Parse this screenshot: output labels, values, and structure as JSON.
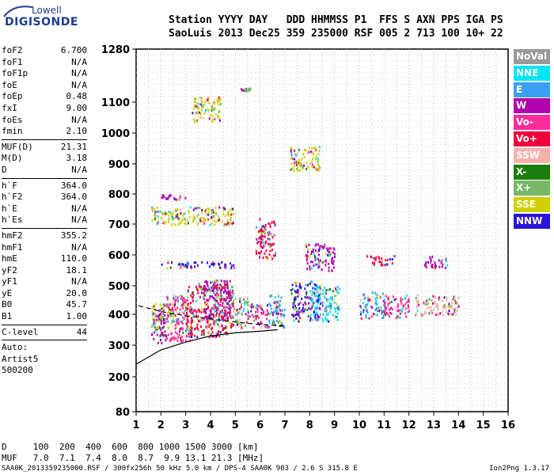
{
  "logo": {
    "top": "Lowell",
    "bottom": "DIGISONDE"
  },
  "header": {
    "line1": "Station YYYY DAY   DDD HHMMSS P1  FFS S AXN PPS IGA PS",
    "line2": "SaoLuis 2013 Dec25 359 235000 RSF 005 2 713 100 10+ 22"
  },
  "params_group1": [
    {
      "name": "foF2",
      "value": "6.700"
    },
    {
      "name": "foF1",
      "value": "N/A"
    },
    {
      "name": "foF1p",
      "value": "N/A"
    },
    {
      "name": "foE",
      "value": "N/A"
    },
    {
      "name": "foEp",
      "value": "0.48"
    },
    {
      "name": "fxI",
      "value": "9.00"
    },
    {
      "name": "foEs",
      "value": "N/A"
    },
    {
      "name": "fmin",
      "value": "2.10"
    }
  ],
  "params_group2": [
    {
      "name": "MUF(D)",
      "value": "21.31"
    },
    {
      "name": "M(D)",
      "value": "3.18"
    },
    {
      "name": "D",
      "value": "N/A"
    }
  ],
  "params_group3": [
    {
      "name": "h`F",
      "value": "364.0"
    },
    {
      "name": "h`F2",
      "value": "364.0"
    },
    {
      "name": "h`E",
      "value": "N/A"
    },
    {
      "name": "h`Es",
      "value": "N/A"
    }
  ],
  "params_group4": [
    {
      "name": "hmF2",
      "value": "355.2"
    },
    {
      "name": "hmF1",
      "value": "N/A"
    },
    {
      "name": "hmE",
      "value": "110.0"
    },
    {
      "name": "yF2",
      "value": "18.1"
    },
    {
      "name": "yF1",
      "value": "N/A"
    },
    {
      "name": "yE",
      "value": "20.0"
    },
    {
      "name": "B0",
      "value": "45.7"
    },
    {
      "name": "B1",
      "value": "1.00"
    }
  ],
  "c_level": {
    "name": "C-level",
    "value": "44"
  },
  "auto": [
    "Auto:",
    "Artist5",
    "500200"
  ],
  "legend": [
    {
      "label": "NoVal",
      "color": "#9a9a9a"
    },
    {
      "label": "NNE",
      "color": "#00e5f5"
    },
    {
      "label": "E",
      "color": "#3aa0ef"
    },
    {
      "label": "W",
      "color": "#b000b0"
    },
    {
      "label": "Vo-",
      "color": "#ff2c9c"
    },
    {
      "label": "Vo+",
      "color": "#f0003a"
    },
    {
      "label": "SSW",
      "color": "#f4b2aa"
    },
    {
      "label": "X-",
      "color": "#1b7d0b"
    },
    {
      "label": "X+",
      "color": "#78b868"
    },
    {
      "label": "SSE",
      "color": "#d0d000"
    },
    {
      "label": "NNW",
      "color": "#2a14d8"
    }
  ],
  "bottom_rows": {
    "d_line": "D     100  200  400  600  800 1000 1500 3000 [km]",
    "muf_line": "MUF   7.0  7.1  7.4  8.0  8.7  9.9 13.1 21.3 [MHz]"
  },
  "footer": {
    "left": "SAA0K_2013359235000.RSF / 300fx256h 50 kHz 5.0 km / DPS-4 SAA0K 903 / 2.6 S 315.8 E",
    "right": "Ion2Png 1.3.17"
  },
  "chart_data": {
    "type": "scatter",
    "x_ticks": [
      1,
      2,
      3,
      4,
      5,
      6,
      7,
      8,
      9,
      10,
      11,
      12,
      13,
      14,
      15,
      16
    ],
    "y_ticks": [
      80,
      200,
      300,
      400,
      500,
      600,
      700,
      800,
      900,
      1000,
      1100,
      1280
    ],
    "xlim": [
      1,
      16
    ],
    "ylim": [
      80,
      1280
    ],
    "x_scale": "linear",
    "y_scale": "nonlinear",
    "grid": true,
    "clusters": [
      {
        "x": [
          1.6,
          2.2
        ],
        "y": [
          310,
          420
        ],
        "series": "W"
      },
      {
        "x": [
          1.6,
          2.6
        ],
        "y": [
          355,
          440
        ],
        "series": "SSE"
      },
      {
        "x": [
          2.2,
          3.3
        ],
        "y": [
          315,
          470
        ],
        "series": "Vo-"
      },
      {
        "x": [
          3.0,
          4.9
        ],
        "y": [
          330,
          510
        ],
        "series": "Vo+"
      },
      {
        "x": [
          3.6,
          4.8
        ],
        "y": [
          380,
          520
        ],
        "series": "W"
      },
      {
        "x": [
          4.8,
          5.5
        ],
        "y": [
          360,
          460
        ],
        "series": "X+"
      },
      {
        "x": [
          5.5,
          6.3
        ],
        "y": [
          360,
          440
        ],
        "series": "Vo-"
      },
      {
        "x": [
          6.3,
          7.0
        ],
        "y": [
          360,
          470
        ],
        "series": "E"
      },
      {
        "x": [
          7.2,
          8.4
        ],
        "y": [
          380,
          520
        ],
        "series": "NNW"
      },
      {
        "x": [
          8.0,
          9.2
        ],
        "y": [
          380,
          500
        ],
        "series": "NNE"
      },
      {
        "x": [
          10.0,
          11.0
        ],
        "y": [
          390,
          480
        ],
        "series": "E"
      },
      {
        "x": [
          11.0,
          12.0
        ],
        "y": [
          390,
          470
        ],
        "series": "Vo-"
      },
      {
        "x": [
          12.2,
          14.0
        ],
        "y": [
          400,
          470
        ],
        "series": "SSW"
      },
      {
        "x": [
          1.6,
          4.9
        ],
        "y": [
          700,
          760
        ],
        "series": "SSE"
      },
      {
        "x": [
          2.0,
          5.0
        ],
        "y": [
          560,
          580
        ],
        "series": "NNW"
      },
      {
        "x": [
          2.0,
          3.0
        ],
        "y": [
          785,
          800
        ],
        "series": "W"
      },
      {
        "x": [
          3.2,
          4.4
        ],
        "y": [
          1040,
          1120
        ],
        "series": "SSE"
      },
      {
        "x": [
          7.2,
          8.4
        ],
        "y": [
          880,
          960
        ],
        "series": "SSE"
      },
      {
        "x": [
          7.8,
          9.0
        ],
        "y": [
          550,
          640
        ],
        "series": "W"
      },
      {
        "x": [
          10.2,
          11.4
        ],
        "y": [
          570,
          600
        ],
        "series": "Vo+"
      },
      {
        "x": [
          12.6,
          13.6
        ],
        "y": [
          560,
          600
        ],
        "series": "W"
      },
      {
        "x": [
          5.8,
          6.6
        ],
        "y": [
          590,
          720
        ],
        "series": "Vo+"
      },
      {
        "x": [
          5.2,
          5.6
        ],
        "y": [
          1140,
          1150
        ],
        "series": "X+"
      }
    ],
    "model_curve": {
      "x": [
        1,
        2,
        3,
        4,
        5,
        6,
        6.7
      ],
      "y": [
        240,
        285,
        310,
        330,
        340,
        345,
        350
      ]
    },
    "dashed_curve": {
      "x": [
        1.1,
        2,
        3,
        4,
        5,
        6,
        7
      ],
      "y": [
        430,
        410,
        395,
        385,
        375,
        367,
        362
      ]
    }
  }
}
